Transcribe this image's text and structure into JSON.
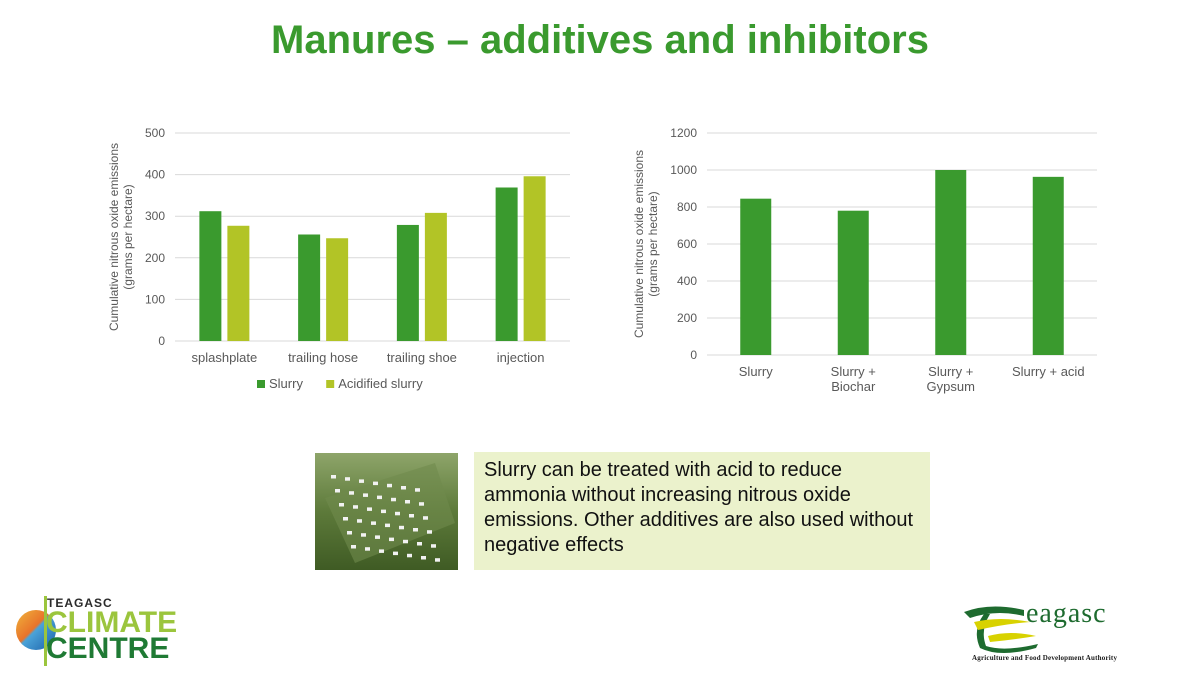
{
  "slide": {
    "title": "Manures – additives and inhibitors",
    "callout_text": "Slurry can be treated with acid to reduce ammonia without increasing nitrous oxide emissions. Other additives are also used without negative effects"
  },
  "logos": {
    "climate_centre": {
      "line1": "TEAGASC",
      "line2": "CLIMATE",
      "line3": "CENTRE"
    },
    "teagasc": {
      "word": "eagasc",
      "subtitle": "Agriculture and Food Development Authority"
    }
  },
  "colors": {
    "title_green": "#3a9a2e",
    "slurry": "#3a9a2e",
    "acidified": "#b2c426",
    "callout_bg": "#ebf2cc"
  },
  "chart_data": [
    {
      "type": "bar",
      "ylabel_lines": [
        "Cumulative nitrous oxide emissions",
        "(grams per hectare)"
      ],
      "categories": [
        "splashplate",
        "trailing hose",
        "trailing shoe",
        "injection"
      ],
      "series": [
        {
          "name": "Slurry",
          "color": "#3a9a2e",
          "values": [
            312,
            256,
            279,
            369
          ]
        },
        {
          "name": "Acidified slurry",
          "color": "#b2c426",
          "values": [
            277,
            247,
            308,
            396
          ]
        }
      ],
      "yticks": [
        0,
        100,
        200,
        300,
        400,
        500
      ],
      "ylim": [
        0,
        500
      ],
      "grid": true,
      "legend": "bottom"
    },
    {
      "type": "bar",
      "ylabel_lines": [
        "Cumulative nitrous oxide emissions",
        "(grams per hectare)"
      ],
      "categories": [
        [
          "Slurry"
        ],
        [
          "Slurry +",
          "Biochar"
        ],
        [
          "Slurry +",
          "Gypsum"
        ],
        [
          "Slurry + acid"
        ]
      ],
      "series": [
        {
          "color": "#3a9a2e",
          "values": [
            845,
            780,
            1000,
            963
          ]
        }
      ],
      "yticks": [
        0,
        200,
        400,
        600,
        800,
        1000,
        1200
      ],
      "ylim": [
        0,
        1200
      ],
      "grid": true,
      "legend": "none"
    }
  ]
}
